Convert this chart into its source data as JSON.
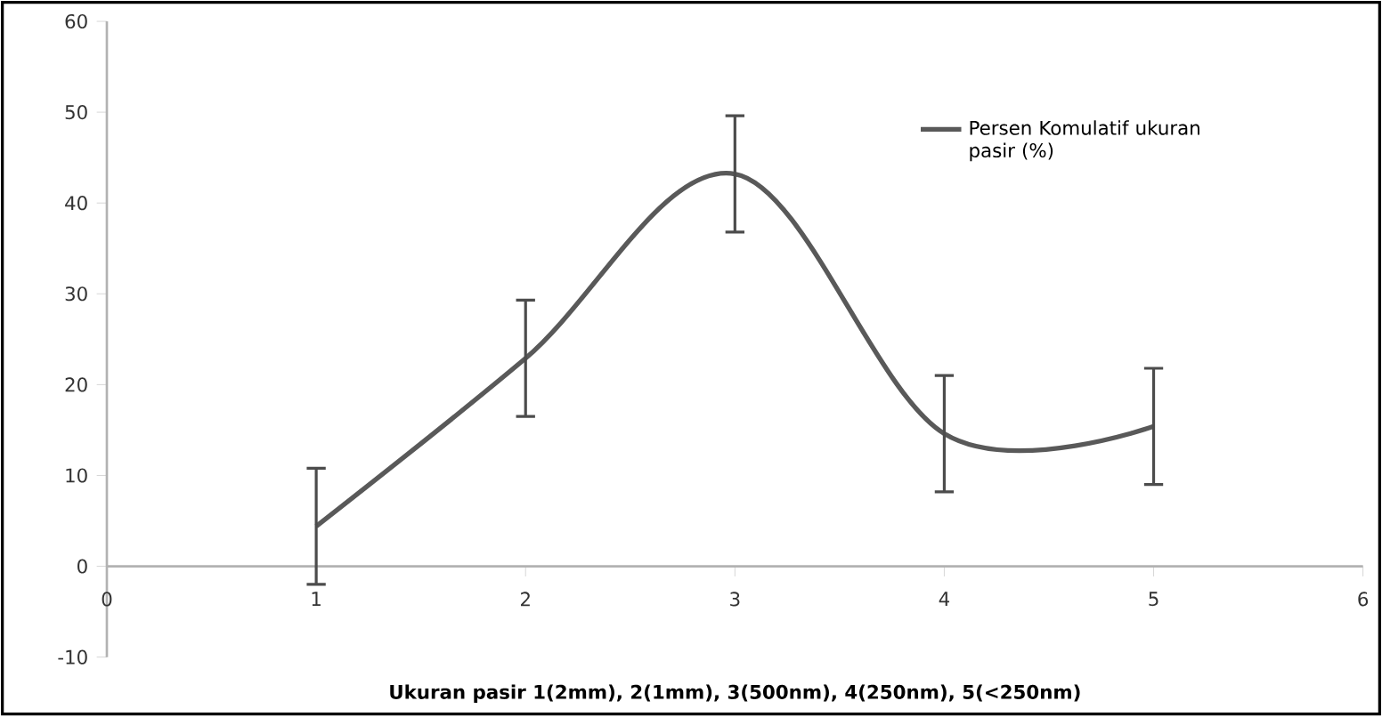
{
  "chart_data": {
    "type": "line",
    "xlabel": "Ukuran pasir 1(2mm), 2(1mm), 3(500nm), 4(250nm), 5(<250nm)",
    "x": [
      1,
      2,
      3,
      4,
      5
    ],
    "series": [
      {
        "name": "Persen Komulatif ukuran pasir (%)",
        "color": "#595959",
        "values": [
          4.4,
          22.9,
          43.2,
          14.6,
          15.4
        ],
        "errors": [
          6.4,
          6.4,
          6.4,
          6.4,
          6.4
        ]
      }
    ],
    "xlim": [
      0,
      6
    ],
    "xticks": [
      0,
      1,
      2,
      3,
      4,
      5,
      6
    ],
    "ylim": [
      -10,
      60
    ],
    "yticks": [
      -10,
      0,
      10,
      20,
      30,
      40,
      50,
      60
    ],
    "grid": false,
    "legend": "top right",
    "marker": "none",
    "line_style": "solid"
  }
}
